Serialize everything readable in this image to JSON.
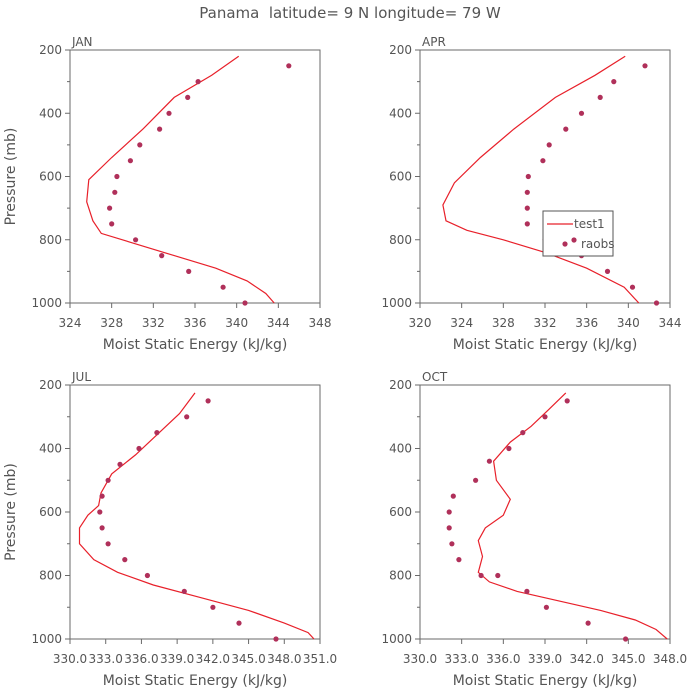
{
  "title": "Panama  latitude= 9 N longitude= 79 W",
  "colors": {
    "model": "#e8202a",
    "obs": "#b0305a",
    "axis": "#6a6a6a",
    "text": "#555555"
  },
  "legend": {
    "model_label": "test1",
    "obs_label": "raobs",
    "panel": "APR"
  },
  "chart_data": [
    {
      "type": "line",
      "panel_label": "JAN",
      "xlabel": "Moist Static Energy (kJ/kg)",
      "ylabel": "Pressure (mb)",
      "xlim": [
        324,
        348
      ],
      "ylim": [
        1000,
        200
      ],
      "xticks": [
        "324",
        "328",
        "332",
        "336",
        "340",
        "344",
        "348"
      ],
      "yticks": [
        "200",
        "400",
        "600",
        "800",
        "1000"
      ],
      "series": [
        {
          "name": "test1",
          "kind": "line",
          "x": [
            340.2,
            337.6,
            334.0,
            331.0,
            328.0,
            325.8,
            325.6,
            326.2,
            327.0,
            330.0,
            334.0,
            338.0,
            341.0,
            342.8,
            343.6
          ],
          "y": [
            220,
            280,
            350,
            450,
            540,
            610,
            680,
            740,
            780,
            810,
            850,
            890,
            930,
            970,
            1000
          ]
        },
        {
          "name": "raobs",
          "kind": "scatter",
          "x": [
            345.0,
            336.3,
            335.3,
            333.5,
            332.6,
            330.7,
            329.8,
            328.5,
            328.3,
            327.8,
            328.0,
            330.3,
            332.8,
            335.4,
            338.7,
            340.8
          ],
          "y": [
            250,
            300,
            350,
            400,
            450,
            500,
            550,
            600,
            650,
            700,
            750,
            800,
            850,
            900,
            950,
            1000
          ]
        }
      ]
    },
    {
      "type": "line",
      "panel_label": "APR",
      "xlabel": "Moist Static Energy (kJ/kg)",
      "ylabel": "",
      "xlim": [
        320,
        344
      ],
      "ylim": [
        1000,
        200
      ],
      "xticks": [
        "320",
        "324",
        "328",
        "332",
        "336",
        "340",
        "344"
      ],
      "yticks": [
        "200",
        "400",
        "600",
        "800",
        "1000"
      ],
      "series": [
        {
          "name": "test1",
          "kind": "line",
          "x": [
            339.7,
            336.8,
            333.0,
            329.0,
            325.8,
            323.3,
            322.2,
            322.5,
            324.5,
            328.0,
            332.0,
            336.0,
            339.6,
            341.0
          ],
          "y": [
            220,
            280,
            350,
            450,
            540,
            620,
            690,
            740,
            770,
            800,
            840,
            890,
            950,
            1000
          ]
        },
        {
          "name": "raobs",
          "kind": "scatter",
          "x": [
            341.6,
            338.6,
            337.3,
            335.5,
            334.0,
            332.4,
            331.8,
            330.4,
            330.3,
            330.3,
            330.3,
            332.0,
            333.3,
            335.5,
            338.0,
            340.4,
            342.7
          ],
          "y": [
            250,
            300,
            350,
            400,
            450,
            500,
            550,
            600,
            650,
            700,
            750,
            800,
            810,
            850,
            900,
            950,
            1000
          ]
        }
      ]
    },
    {
      "type": "line",
      "panel_label": "JUL",
      "xlabel": "Moist Static Energy (kJ/kg)",
      "ylabel": "Pressure (mb)",
      "xlim": [
        330.0,
        351.0
      ],
      "ylim": [
        1000,
        200
      ],
      "xticks": [
        "330.0",
        "333.0",
        "336.0",
        "339.0",
        "342.0",
        "345.0",
        "348.0",
        "351.0"
      ],
      "yticks": [
        "200",
        "400",
        "600",
        "800",
        "1000"
      ],
      "series": [
        {
          "name": "test1",
          "kind": "line",
          "x": [
            340.5,
            339.2,
            337.5,
            335.5,
            333.5,
            332.6,
            332.4,
            331.5,
            330.8,
            330.8,
            332.0,
            334.0,
            337.0,
            341.0,
            345.0,
            348.0,
            350.0,
            350.5
          ],
          "y": [
            225,
            290,
            350,
            420,
            480,
            540,
            580,
            610,
            650,
            700,
            750,
            790,
            830,
            870,
            910,
            950,
            980,
            1000
          ]
        },
        {
          "name": "raobs",
          "kind": "scatter",
          "x": [
            341.6,
            339.8,
            337.3,
            335.8,
            334.2,
            333.2,
            332.7,
            332.5,
            332.7,
            333.2,
            334.6,
            336.5,
            339.6,
            342.0,
            344.2,
            347.3
          ],
          "y": [
            250,
            300,
            350,
            400,
            450,
            500,
            550,
            600,
            650,
            700,
            750,
            800,
            850,
            900,
            950,
            1000
          ]
        }
      ]
    },
    {
      "type": "line",
      "panel_label": "OCT",
      "xlabel": "Moist Static Energy (kJ/kg)",
      "ylabel": "",
      "xlim": [
        330.0,
        348.0
      ],
      "ylim": [
        1000,
        200
      ],
      "xticks": [
        "330.0",
        "333.0",
        "336.0",
        "339.0",
        "342.0",
        "345.0",
        "348.0"
      ],
      "yticks": [
        "200",
        "400",
        "600",
        "800",
        "1000"
      ],
      "series": [
        {
          "name": "test1",
          "kind": "line",
          "x": [
            340.5,
            339.2,
            338.0,
            336.5,
            335.3,
            335.5,
            336.5,
            336.0,
            334.7,
            334.2,
            334.5,
            334.2,
            335.0,
            337.0,
            340.0,
            343.0,
            345.5,
            347.0,
            347.8
          ],
          "y": [
            225,
            280,
            330,
            380,
            440,
            500,
            560,
            610,
            650,
            690,
            740,
            790,
            820,
            850,
            880,
            910,
            940,
            970,
            1000
          ]
        },
        {
          "name": "raobs",
          "kind": "scatter",
          "x": [
            340.6,
            339.0,
            337.4,
            336.4,
            335.0,
            334.0,
            332.4,
            332.1,
            332.1,
            332.3,
            332.8,
            334.4,
            335.6,
            337.7,
            339.1,
            342.1,
            344.8
          ],
          "y": [
            250,
            300,
            350,
            400,
            440,
            500,
            550,
            600,
            650,
            700,
            750,
            800,
            800,
            850,
            900,
            950,
            1000
          ]
        }
      ]
    }
  ]
}
